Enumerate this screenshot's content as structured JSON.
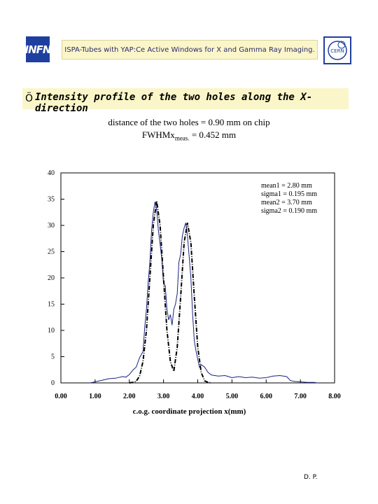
{
  "header": {
    "left_logo": "INFN",
    "title": "ISPA-Tubes with YAP:Ce Active Windows for X and Gamma Ray Imaging.",
    "right_logo": "CERN"
  },
  "slide": {
    "bullet": "Ö",
    "heading": "Intensity profile of the two holes along the X-direction",
    "line1": "distance of the two holes = 0.90 mm on chip",
    "line2_main": "FWHMx",
    "line2_sub": "meas.",
    "line2_tail": " = 0.452 mm",
    "footer": "D. P."
  },
  "chart_data": {
    "type": "line",
    "xlabel": "c.o.g. coordinate projection x(mm)",
    "ylabel": "",
    "xlim": [
      0,
      8
    ],
    "ylim": [
      0,
      40
    ],
    "x_ticks": [
      "0.00",
      "1.00",
      "2.00",
      "3.00",
      "4.00",
      "5.00",
      "6.00",
      "7.00",
      "8.00"
    ],
    "y_ticks": [
      "0",
      "5",
      "10",
      "15",
      "20",
      "25",
      "30",
      "35",
      "40"
    ],
    "annotations": [
      "mean1 = 2.80 mm",
      "sigma1 = 0.195 mm",
      "mean2 =  3.70 mm",
      "sigma2 = 0.190 mm"
    ],
    "series": [
      {
        "name": "",
        "color": "#1a237e",
        "style": "solid",
        "x": [
          0.85,
          1.0,
          1.2,
          1.4,
          1.6,
          1.8,
          1.9,
          2.0,
          2.1,
          2.2,
          2.3,
          2.4,
          2.45,
          2.5,
          2.55,
          2.6,
          2.65,
          2.7,
          2.75,
          2.8,
          2.85,
          2.9,
          2.95,
          3.0,
          3.05,
          3.1,
          3.15,
          3.2,
          3.25,
          3.3,
          3.35,
          3.4,
          3.45,
          3.5,
          3.55,
          3.6,
          3.65,
          3.7,
          3.75,
          3.8,
          3.85,
          3.9,
          3.95,
          4.0,
          4.05,
          4.1,
          4.2,
          4.3,
          4.4,
          4.6,
          4.8,
          5.0,
          5.2,
          5.4,
          5.6,
          5.8,
          6.0,
          6.2,
          6.4,
          6.6,
          6.7,
          6.8,
          7.0,
          7.2,
          7.4,
          7.5
        ],
        "y": [
          0,
          0.2,
          0.5,
          0.8,
          0.9,
          1.2,
          1.1,
          1.6,
          2.4,
          3.0,
          4.8,
          6.0,
          10.5,
          14.0,
          19.0,
          23.0,
          29.0,
          32.5,
          34.5,
          33.0,
          29.0,
          26.5,
          23.5,
          19.0,
          18.5,
          14.0,
          12.0,
          13.0,
          11.0,
          14.0,
          15.0,
          17.0,
          23.0,
          24.5,
          28.0,
          29.5,
          30.5,
          28.0,
          24.0,
          20.0,
          13.0,
          8.0,
          6.0,
          4.5,
          3.0,
          3.5,
          3.0,
          2.0,
          1.5,
          1.3,
          1.4,
          1.0,
          1.2,
          1.0,
          1.1,
          0.9,
          1.0,
          1.3,
          1.4,
          1.2,
          0.5,
          0.3,
          0.2,
          0.1,
          0.1,
          0
        ]
      },
      {
        "name": "",
        "color": "#000000",
        "style": "fit",
        "x": [
          2.0,
          2.1,
          2.2,
          2.3,
          2.4,
          2.5,
          2.6,
          2.7,
          2.8,
          2.9,
          3.0,
          3.1,
          3.2,
          3.3,
          3.4,
          3.5,
          3.6,
          3.7,
          3.8,
          3.9,
          4.0,
          4.1,
          4.2,
          4.3,
          4.4
        ],
        "y": [
          0.0,
          0.1,
          0.3,
          1.3,
          4.1,
          10.0,
          20.0,
          30.0,
          34.7,
          30.0,
          20.0,
          10.0,
          4.1,
          2.2,
          6.8,
          16.4,
          26.7,
          30.5,
          26.7,
          16.4,
          6.8,
          2.0,
          0.4,
          0.1,
          0.0
        ]
      }
    ]
  }
}
